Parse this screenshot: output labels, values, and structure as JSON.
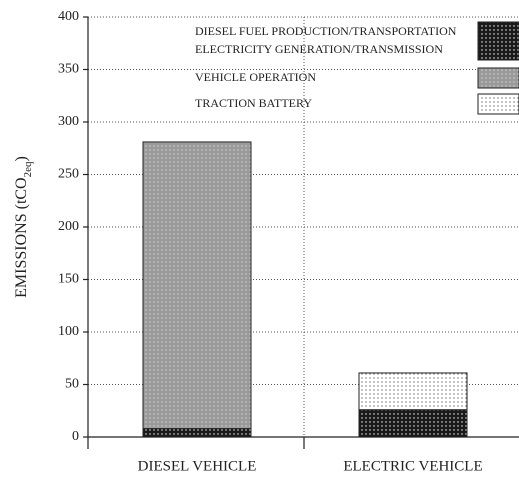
{
  "chart_data": {
    "type": "stacked_bar",
    "y_label": [
      "EMISSIONS (tCO",
      "2eq",
      ")"
    ],
    "categories": [
      "DIESEL VEHICLE",
      "ELECTRIC VEHICLE"
    ],
    "series": [
      {
        "name": "DIESEL FUEL PRODUCTION/TRANSPORTATION",
        "color": "#1a1a1a",
        "values": [
          8,
          null
        ]
      },
      {
        "name": "ELECTRICITY GENERATION/TRANSMISSION",
        "color": "#1a1a1a",
        "values": [
          null,
          26
        ]
      },
      {
        "name": "VEHICLE OPERATION",
        "color": "#9a9a9a",
        "values": [
          273,
          null
        ]
      },
      {
        "name": "TRACTION BATTERY",
        "color": "#ffffff",
        "values": [
          null,
          35
        ]
      }
    ],
    "ylim": [
      0,
      400
    ],
    "yticks": [
      0,
      50,
      100,
      150,
      200,
      250,
      300,
      350,
      400
    ],
    "grid": true,
    "legend": "top-right"
  }
}
